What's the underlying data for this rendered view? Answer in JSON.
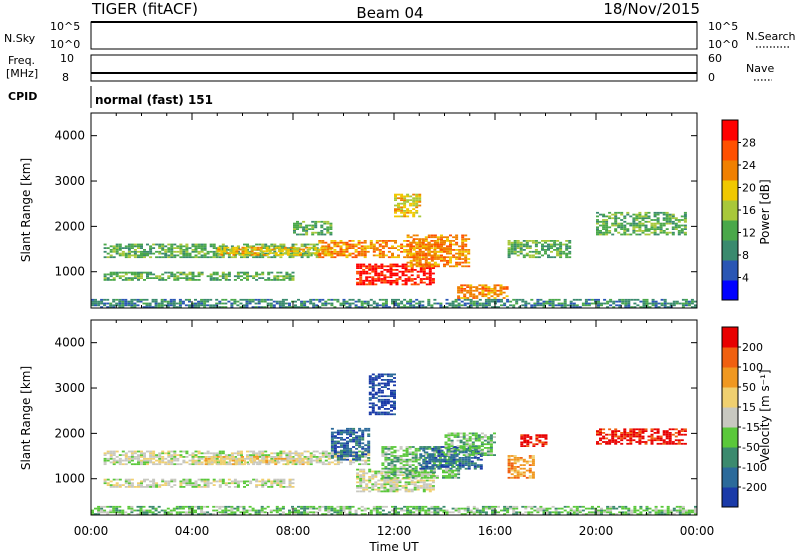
{
  "header": {
    "radar": "TIGER (fitACF)",
    "beam": "Beam 04",
    "date": "18/Nov/2015"
  },
  "status_panels": {
    "nsky": {
      "label": "N.Sky",
      "left_ticks": [
        "10^5",
        "10^0"
      ],
      "right_ticks": [
        "10^5",
        "10^0"
      ],
      "right_label": "N.Search"
    },
    "freq": {
      "label_lines": [
        "Freq.",
        "[MHz]"
      ],
      "left_ticks": [
        "10",
        "8"
      ],
      "right_ticks": [
        "60",
        "0"
      ],
      "right_label": "Nave"
    },
    "cpid": {
      "label": "CPID",
      "text": "normal (fast) 151"
    }
  },
  "colors": {
    "power_scale": [
      "#0000ff",
      "#2a56b4",
      "#3a8a6e",
      "#4aa84a",
      "#a8c83a",
      "#f0c800",
      "#f08000",
      "#ff5000",
      "#ff0000"
    ],
    "velocity_scale": [
      "#1a3aa8",
      "#2b6a9a",
      "#3b8a6e",
      "#5ac83a",
      "#c8c8c0",
      "#f0d070",
      "#f09820",
      "#f06010",
      "#e80000"
    ],
    "ground_scatter": "#c8c8c0"
  },
  "chart_data": [
    {
      "type": "heatmap",
      "panel": "power",
      "ylabel": "Slant Range [km]",
      "y_ticks": [
        "1000",
        "2000",
        "3000",
        "4000"
      ],
      "ylim": [
        200,
        4500
      ],
      "x_ticks": [
        "00:00",
        "04:00",
        "08:00",
        "12:00",
        "16:00",
        "20:00",
        "00:00"
      ],
      "xlim_hours": [
        0,
        24
      ],
      "colorbar_label": "Power [dB]",
      "colorbar_ticks": [
        "4",
        "8",
        "12",
        "16",
        "20",
        "24",
        "28"
      ],
      "regions": [
        {
          "t": [
            0.5,
            9.0
          ],
          "r": [
            1300,
            1600
          ],
          "level": 3
        },
        {
          "t": [
            5.0,
            9.5
          ],
          "r": [
            1350,
            1550
          ],
          "level": 5
        },
        {
          "t": [
            0.5,
            8.0
          ],
          "r": [
            800,
            1000
          ],
          "level": 3
        },
        {
          "t": [
            9.0,
            14.0
          ],
          "r": [
            1300,
            1700
          ],
          "level": 6
        },
        {
          "t": [
            10.5,
            13.5
          ],
          "r": [
            700,
            1150
          ],
          "level": 8
        },
        {
          "t": [
            12.5,
            15.0
          ],
          "r": [
            1100,
            1800
          ],
          "level": 6
        },
        {
          "t": [
            14.5,
            16.5
          ],
          "r": [
            400,
            700
          ],
          "level": 6
        },
        {
          "t": [
            8.0,
            9.5
          ],
          "r": [
            1800,
            2100
          ],
          "level": 3
        },
        {
          "t": [
            12.0,
            13.0
          ],
          "r": [
            2200,
            2700
          ],
          "level": 5
        },
        {
          "t": [
            16.5,
            19.0
          ],
          "r": [
            1300,
            1700
          ],
          "level": 3
        },
        {
          "t": [
            20.0,
            23.5
          ],
          "r": [
            1800,
            2300
          ],
          "level": 3
        },
        {
          "t": [
            0,
            24
          ],
          "r": [
            200,
            400
          ],
          "level": 2
        }
      ]
    },
    {
      "type": "heatmap",
      "panel": "velocity",
      "ylabel": "Slant Range [km]",
      "y_ticks": [
        "1000",
        "2000",
        "3000",
        "4000"
      ],
      "ylim": [
        200,
        4500
      ],
      "x_ticks": [
        "00:00",
        "04:00",
        "08:00",
        "12:00",
        "16:00",
        "20:00",
        "00:00"
      ],
      "xlim_hours": [
        0,
        24
      ],
      "xlabel": "Time UT",
      "colorbar_label": "Velocity [m s⁻¹]",
      "colorbar_ticks": [
        "-200",
        "-100",
        "-50",
        "-15",
        "15",
        "50",
        "100",
        "200"
      ],
      "regions": [
        {
          "t": [
            0.5,
            11.0
          ],
          "r": [
            1300,
            1600
          ],
          "level": 4
        },
        {
          "t": [
            0.5,
            8.0
          ],
          "r": [
            800,
            1000
          ],
          "level": 4
        },
        {
          "t": [
            4.5,
            8.5
          ],
          "r": [
            1300,
            1500
          ],
          "level": 5
        },
        {
          "t": [
            9.5,
            11.0
          ],
          "r": [
            1400,
            2100
          ],
          "level": 1
        },
        {
          "t": [
            10.5,
            13.5
          ],
          "r": [
            700,
            1200
          ],
          "level": 4
        },
        {
          "t": [
            11.5,
            14.5
          ],
          "r": [
            1000,
            1700
          ],
          "level": 3
        },
        {
          "t": [
            13.0,
            15.5
          ],
          "r": [
            1200,
            1700
          ],
          "level": 1
        },
        {
          "t": [
            14.0,
            16.0
          ],
          "r": [
            1500,
            2000
          ],
          "level": 3
        },
        {
          "t": [
            16.5,
            17.5
          ],
          "r": [
            1000,
            1500
          ],
          "level": 6
        },
        {
          "t": [
            17.0,
            18.0
          ],
          "r": [
            1700,
            1950
          ],
          "level": 8
        },
        {
          "t": [
            20.0,
            23.5
          ],
          "r": [
            1750,
            2100
          ],
          "level": 8
        },
        {
          "t": [
            11.0,
            12.0
          ],
          "r": [
            2400,
            3300
          ],
          "level": 0
        },
        {
          "t": [
            0,
            24
          ],
          "r": [
            200,
            400
          ],
          "level": 3
        }
      ]
    }
  ]
}
